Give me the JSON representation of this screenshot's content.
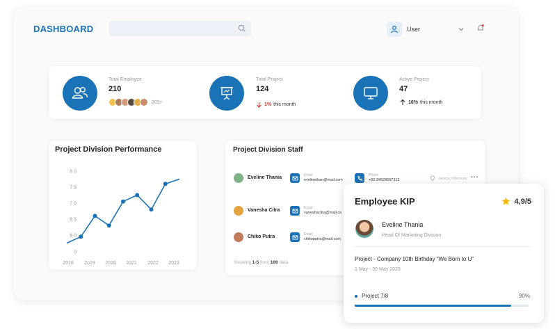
{
  "header": {
    "brand": "DASHBOARD",
    "search_placeholder": "",
    "user_name": "User"
  },
  "stats": [
    {
      "label": "Total Employee",
      "value": "210",
      "avatar_count": "205+"
    },
    {
      "label": "Total Project",
      "value": "124",
      "change_value": "1%",
      "change_text": "this month",
      "direction": "down"
    },
    {
      "label": "Active Project",
      "value": "47",
      "change_value": "16%",
      "change_text": "this month",
      "direction": "up"
    }
  ],
  "performance": {
    "title": "Project Division Performance"
  },
  "chart_data": {
    "type": "line",
    "title": "Project Division Performance",
    "xlabel": "",
    "ylabel": "",
    "y_tick_labels": [
      "8.0",
      "7.5",
      "7.0",
      "6.5",
      "6.0",
      "0"
    ],
    "x_tick_labels": [
      "2018",
      "2o19",
      "2020",
      "2021",
      "2022",
      "2023"
    ],
    "series": [
      {
        "values": [
          5.75,
          5.95,
          6.6,
          6.3,
          7.05,
          7.25,
          6.8,
          7.6,
          7.75
        ]
      }
    ],
    "color": "#1a73b6",
    "grid": false,
    "legend": "none"
  },
  "staff": {
    "title": "Project Division Staff",
    "email_label": "Email",
    "phone_label": "Phone",
    "rows": [
      {
        "name": "Eveline Thania",
        "email": "evelinethan@mail.com",
        "phone": "+62 24529597312",
        "location": "Jakarta, Indonesia"
      },
      {
        "name": "Vanesha Citra",
        "email": "vaneshacitra@mail.co"
      },
      {
        "name": "Chiko Putra",
        "email": "chikoputra@mail.com"
      }
    ],
    "showing_prefix": "Showing",
    "showing_range": "1-5",
    "showing_from": "from",
    "showing_total": "100",
    "showing_suffix": "data"
  },
  "kip": {
    "title": "Employee KIP",
    "rating": "4,9/5",
    "name": "Eveline Thania",
    "role": "Head Of Marketing Division",
    "project": "Project - Company 10th Birthday “We Born to U”",
    "dates": "1 May - 30 May 2023",
    "progress_label": "Project 7/8",
    "progress_percent": "90%",
    "progress": 0.9
  },
  "colors": {
    "accent": "#1a73b6",
    "star": "#f5b50a",
    "down": "#c0392b"
  }
}
